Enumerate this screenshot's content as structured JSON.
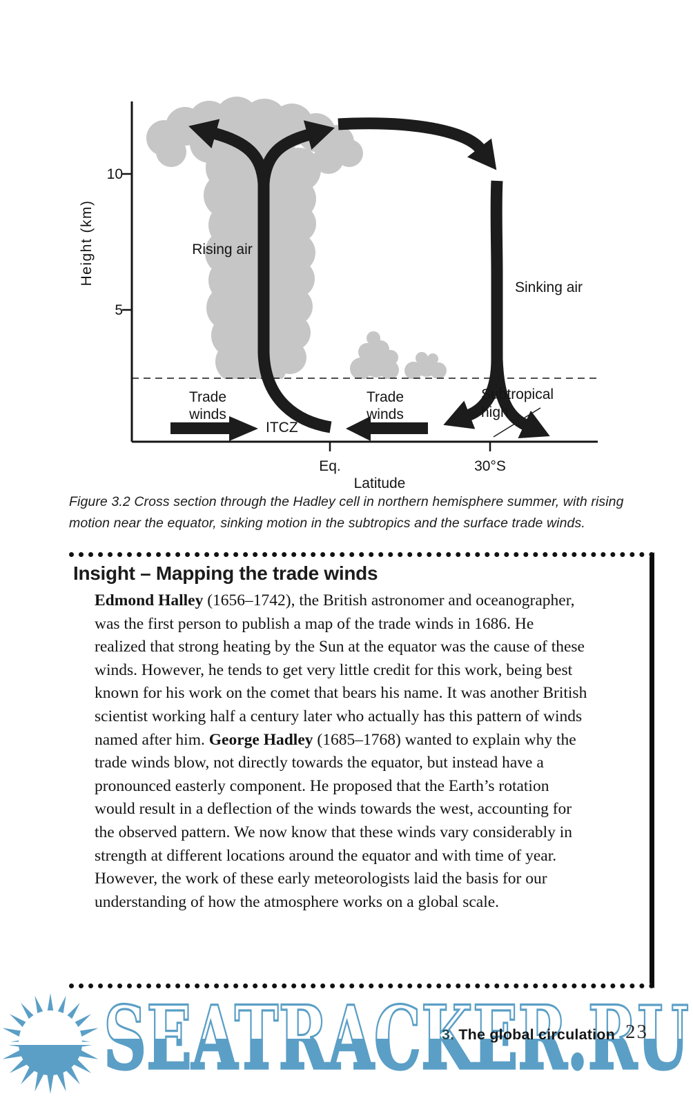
{
  "figure": {
    "y_axis": {
      "label": "Height (km)",
      "ticks": [
        "10",
        "5"
      ]
    },
    "x_axis": {
      "label": "Latitude",
      "ticks": [
        "Eq.",
        "30°S"
      ]
    },
    "annotations": {
      "rising_air": "Rising air",
      "sinking_air": "Sinking air",
      "trade_left_line1": "Trade",
      "trade_left_line2": "winds",
      "trade_right_line1": "Trade",
      "trade_right_line2": "winds",
      "itcz": "ITCZ",
      "subtropical_line1": "Subtropical",
      "subtropical_line2": "high"
    },
    "caption": "Figure 3.2 Cross section through the Hadley cell in northern hemisphere summer, with rising motion near the equator, sinking motion in the subtropics and the surface trade winds."
  },
  "insight": {
    "title": "Insight – Mapping the trade winds",
    "body": [
      {
        "text": "Edmond Halley",
        "bold": true
      },
      {
        "text": " (1656–1742), the British astronomer and oceanographer, was the first person to publish a map of the trade winds in 1686. He realized that strong heating by the Sun at the equator was the cause of these winds. However, he tends to get very little credit for this work, being best known for his work on the comet that bears his name. It was another British scientist working half a century later who actually has this pattern of winds named after him. ",
        "bold": false
      },
      {
        "text": "George Hadley",
        "bold": true
      },
      {
        "text": " (1685–1768) wanted to explain why the trade winds blow, not directly towards the equator, but instead have a pronounced easterly component. He proposed that the Earth’s rotation would result in a deflection of the winds towards the west, accounting for the observed pattern. We now know that these winds vary considerably in strength at different locations around the equator and with time of year. However, the work of these early meteorologists laid the basis for our understanding of how the atmosphere works on a global scale.",
        "bold": false
      }
    ]
  },
  "footer": {
    "chapter_number": "3.",
    "chapter_title": "The global circulation",
    "page_number": "23"
  },
  "watermark": {
    "text": "SEATRACKER.RU"
  },
  "colors": {
    "watermark_blue": "#5b9fc6",
    "footer_accent": "#1d4f5e",
    "ink": "#141414",
    "cloud_gray": "#c6c6c6"
  }
}
